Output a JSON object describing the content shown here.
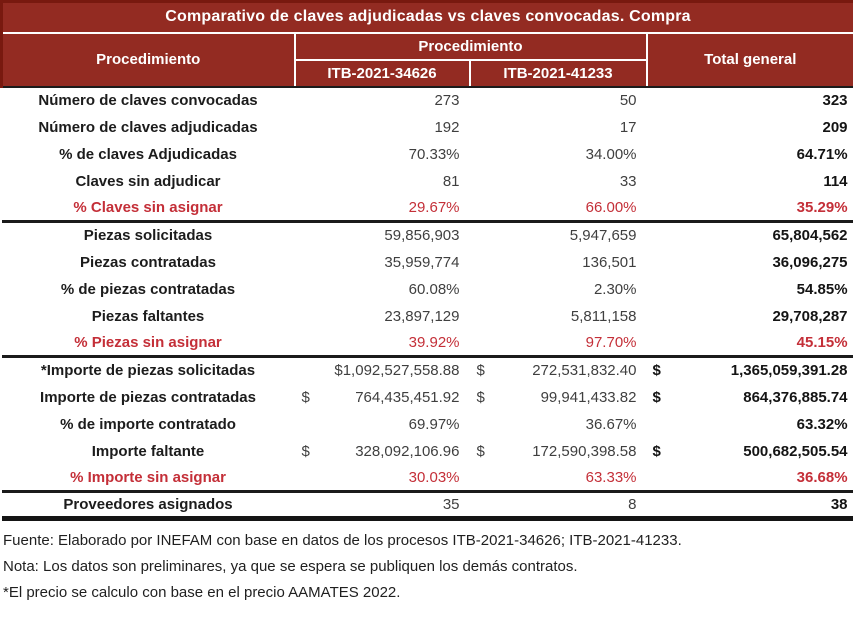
{
  "title": "Comparativo de claves adjudicadas vs claves convocadas. Compra",
  "header": {
    "row_label_col": "Procedimiento",
    "group_label": "Procedimiento",
    "col1": "ITB-2021-34626",
    "col2": "ITB-2021-41233",
    "total": "Total general"
  },
  "colors": {
    "header_bg": "#932B22",
    "header_outer_border": "#78190F",
    "section_line": "#1B1B1B",
    "red_text": "#C42F38",
    "header_text": "#FFFFFF"
  },
  "rows": [
    {
      "label": "Número de claves convocadas",
      "c1": {
        "cur": "",
        "val": "273"
      },
      "c2": {
        "cur": "",
        "val": "50"
      },
      "total": {
        "cur": "",
        "val": "323"
      },
      "red": false,
      "sep_after": false,
      "last": false
    },
    {
      "label": "Número de claves adjudicadas",
      "c1": {
        "cur": "",
        "val": "192"
      },
      "c2": {
        "cur": "",
        "val": "17"
      },
      "total": {
        "cur": "",
        "val": "209"
      },
      "red": false,
      "sep_after": false,
      "last": false
    },
    {
      "label": "% de claves Adjudicadas",
      "c1": {
        "cur": "",
        "val": "70.33%"
      },
      "c2": {
        "cur": "",
        "val": "34.00%"
      },
      "total": {
        "cur": "",
        "val": "64.71%"
      },
      "red": false,
      "sep_after": false,
      "last": false
    },
    {
      "label": "Claves sin adjudicar",
      "c1": {
        "cur": "",
        "val": "81"
      },
      "c2": {
        "cur": "",
        "val": "33"
      },
      "total": {
        "cur": "",
        "val": "114"
      },
      "red": false,
      "sep_after": false,
      "last": false
    },
    {
      "label": "% Claves sin asignar",
      "c1": {
        "cur": "",
        "val": "29.67%"
      },
      "c2": {
        "cur": "",
        "val": "66.00%"
      },
      "total": {
        "cur": "",
        "val": "35.29%"
      },
      "red": true,
      "sep_after": true,
      "last": false
    },
    {
      "label": "Piezas solicitadas",
      "c1": {
        "cur": "",
        "val": "59,856,903"
      },
      "c2": {
        "cur": "",
        "val": "5,947,659"
      },
      "total": {
        "cur": "",
        "val": "65,804,562"
      },
      "red": false,
      "sep_after": false,
      "last": false
    },
    {
      "label": "Piezas contratadas",
      "c1": {
        "cur": "",
        "val": "35,959,774"
      },
      "c2": {
        "cur": "",
        "val": "136,501"
      },
      "total": {
        "cur": "",
        "val": "36,096,275"
      },
      "red": false,
      "sep_after": false,
      "last": false
    },
    {
      "label": "% de piezas contratadas",
      "c1": {
        "cur": "",
        "val": "60.08%"
      },
      "c2": {
        "cur": "",
        "val": "2.30%"
      },
      "total": {
        "cur": "",
        "val": "54.85%"
      },
      "red": false,
      "sep_after": false,
      "last": false
    },
    {
      "label": "Piezas faltantes",
      "c1": {
        "cur": "",
        "val": "23,897,129"
      },
      "c2": {
        "cur": "",
        "val": "5,811,158"
      },
      "total": {
        "cur": "",
        "val": "29,708,287"
      },
      "red": false,
      "sep_after": false,
      "last": false
    },
    {
      "label": "% Piezas sin asignar",
      "c1": {
        "cur": "",
        "val": "39.92%"
      },
      "c2": {
        "cur": "",
        "val": "97.70%"
      },
      "total": {
        "cur": "",
        "val": "45.15%"
      },
      "red": true,
      "sep_after": true,
      "last": false
    },
    {
      "label": "*Importe de piezas solicitadas",
      "c1": {
        "cur": "",
        "val": "$1,092,527,558.88"
      },
      "c2": {
        "cur": "$",
        "val": "272,531,832.40"
      },
      "total": {
        "cur": "$",
        "val": "1,365,059,391.28"
      },
      "red": false,
      "sep_after": false,
      "last": false
    },
    {
      "label": "Importe de piezas contratadas",
      "c1": {
        "cur": "$",
        "val": "764,435,451.92"
      },
      "c2": {
        "cur": "$",
        "val": "99,941,433.82"
      },
      "total": {
        "cur": "$",
        "val": "864,376,885.74"
      },
      "red": false,
      "sep_after": false,
      "last": false
    },
    {
      "label": "% de importe contratado",
      "c1": {
        "cur": "",
        "val": "69.97%"
      },
      "c2": {
        "cur": "",
        "val": "36.67%"
      },
      "total": {
        "cur": "",
        "val": "63.32%"
      },
      "red": false,
      "sep_after": false,
      "last": false
    },
    {
      "label": "Importe faltante",
      "c1": {
        "cur": "$",
        "val": "328,092,106.96"
      },
      "c2": {
        "cur": "$",
        "val": "172,590,398.58"
      },
      "total": {
        "cur": "$",
        "val": "500,682,505.54"
      },
      "red": false,
      "sep_after": false,
      "last": false
    },
    {
      "label": "% Importe sin asignar",
      "c1": {
        "cur": "",
        "val": "30.03%"
      },
      "c2": {
        "cur": "",
        "val": "63.33%"
      },
      "total": {
        "cur": "",
        "val": "36.68%"
      },
      "red": true,
      "sep_after": true,
      "last": false
    },
    {
      "label": "Proveedores asignados",
      "c1": {
        "cur": "",
        "val": "35"
      },
      "c2": {
        "cur": "",
        "val": "8"
      },
      "total": {
        "cur": "",
        "val": "38"
      },
      "red": false,
      "sep_after": false,
      "last": true
    }
  ],
  "footnotes": [
    "Fuente: Elaborado por INEFAM con base en datos de los procesos ITB-2021-34626; ITB-2021-41233.",
    "Nota: Los datos son preliminares, ya que se espera se publiquen los demás contratos.",
    "*El precio se calculo con base en el precio AAMATES 2022."
  ],
  "chart_data": {
    "type": "table",
    "title": "Comparativo de claves adjudicadas vs claves convocadas. Compra",
    "columns": [
      "Procedimiento",
      "ITB-2021-34626",
      "ITB-2021-41233",
      "Total general"
    ],
    "rows": [
      [
        "Número de claves convocadas",
        "273",
        "50",
        "323"
      ],
      [
        "Número de claves adjudicadas",
        "192",
        "17",
        "209"
      ],
      [
        "% de claves Adjudicadas",
        "70.33%",
        "34.00%",
        "64.71%"
      ],
      [
        "Claves sin adjudicar",
        "81",
        "33",
        "114"
      ],
      [
        "% Claves sin asignar",
        "29.67%",
        "66.00%",
        "35.29%"
      ],
      [
        "Piezas solicitadas",
        "59,856,903",
        "5,947,659",
        "65,804,562"
      ],
      [
        "Piezas contratadas",
        "35,959,774",
        "136,501",
        "36,096,275"
      ],
      [
        "% de piezas contratadas",
        "60.08%",
        "2.30%",
        "54.85%"
      ],
      [
        "Piezas faltantes",
        "23,897,129",
        "5,811,158",
        "29,708,287"
      ],
      [
        "% Piezas sin asignar",
        "39.92%",
        "97.70%",
        "45.15%"
      ],
      [
        "*Importe de piezas solicitadas",
        "$1,092,527,558.88",
        "$ 272,531,832.40",
        "$ 1,365,059,391.28"
      ],
      [
        "Importe de piezas contratadas",
        "$ 764,435,451.92",
        "$ 99,941,433.82",
        "$ 864,376,885.74"
      ],
      [
        "% de importe contratado",
        "69.97%",
        "36.67%",
        "63.32%"
      ],
      [
        "Importe faltante",
        "$ 328,092,106.96",
        "$ 172,590,398.58",
        "$ 500,682,505.54"
      ],
      [
        "% Importe sin asignar",
        "30.03%",
        "63.33%",
        "36.68%"
      ],
      [
        "Proveedores asignados",
        "35",
        "8",
        "38"
      ]
    ],
    "notes": [
      "Fuente: Elaborado por INEFAM con base en datos de los procesos ITB-2021-34626; ITB-2021-41233.",
      "Nota: Los datos son preliminares, ya que se espera se publiquen los demás contratos.",
      "*El precio se calculo con base en el precio AAMATES 2022."
    ]
  }
}
